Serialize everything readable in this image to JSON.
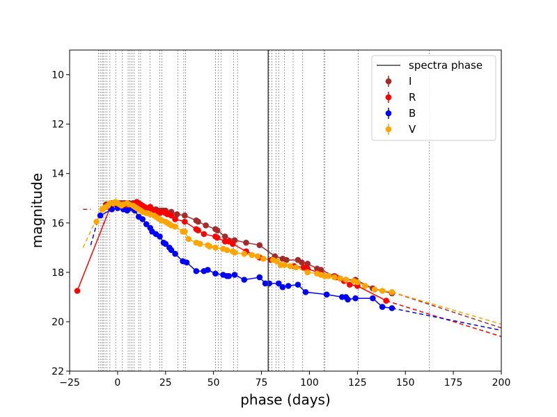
{
  "chart_data": {
    "type": "scatter",
    "xlabel": "phase (days)",
    "ylabel": "magnitude",
    "xlim": [
      -25,
      200
    ],
    "ylim": [
      22,
      9
    ],
    "y_inverted": true,
    "xticks": [
      -25,
      0,
      25,
      50,
      75,
      100,
      125,
      150,
      175,
      200
    ],
    "yticks": [
      10,
      12,
      14,
      16,
      18,
      20,
      22
    ],
    "grid": false,
    "legend_position": "top-right",
    "spectra_phase": 78.5,
    "spectra_phase_label": "spectra phase",
    "spectra_phase_color": "#404040",
    "obs_epochs": [
      -10,
      -9,
      -8,
      -7.5,
      -6.5,
      -5.5,
      -4,
      -1,
      2.5,
      5.5,
      6.5,
      7.5,
      8.5,
      11,
      12,
      17,
      22,
      23,
      31.5,
      34.5,
      35.5,
      51,
      52.5,
      54,
      60.5,
      62.5,
      79,
      80.5,
      82.5,
      84,
      87,
      91.5,
      96.5,
      107.5,
      108,
      125.5,
      162.5
    ],
    "series": [
      {
        "name": "I",
        "color": "#a52a2a",
        "x": [
          -6,
          -5,
          -3,
          1,
          2,
          3,
          4,
          5,
          6,
          8,
          9,
          10,
          11,
          12,
          13,
          17,
          20,
          22,
          23,
          24,
          25,
          28,
          31,
          35,
          41,
          42,
          46,
          51,
          52,
          56,
          61,
          67,
          74,
          82,
          86,
          88,
          94,
          96,
          99,
          104,
          106,
          113,
          116,
          119,
          124,
          133,
          143
        ],
        "y": [
          15.25,
          15.3,
          15.2,
          15.2,
          15.2,
          15.2,
          15.2,
          15.2,
          15.2,
          15.2,
          15.25,
          15.25,
          15.3,
          15.35,
          15.35,
          15.4,
          15.45,
          15.5,
          15.5,
          15.5,
          15.5,
          15.55,
          15.65,
          15.7,
          15.9,
          15.95,
          16.1,
          16.25,
          16.3,
          16.55,
          16.7,
          16.8,
          16.9,
          17.35,
          17.45,
          17.5,
          17.5,
          17.6,
          17.65,
          17.85,
          17.9,
          18.15,
          18.25,
          18.3,
          18.3,
          18.65,
          18.85
        ],
        "fit_x": [
          -14,
          143
        ],
        "fit_y": [
          15.45,
          18.8
        ],
        "extrap_x": [
          -18,
          -14,
          143,
          200
        ],
        "extrap_y": [
          15.45,
          15.45,
          18.8,
          20.25
        ]
      },
      {
        "name": "R",
        "color": "#ff0000",
        "x": [
          -21,
          -4,
          1,
          3,
          5,
          6,
          8,
          10,
          11,
          12,
          13,
          14,
          15,
          17,
          18,
          19,
          20,
          22,
          24,
          25,
          26,
          28,
          30,
          35,
          41,
          42,
          45,
          51,
          52,
          56,
          58,
          60,
          67,
          74,
          80,
          85,
          92,
          97,
          99,
          106,
          114,
          118,
          121,
          125,
          140
        ],
        "y": [
          18.75,
          15.4,
          15.25,
          15.3,
          15.35,
          15.4,
          15.25,
          15.15,
          15.2,
          15.25,
          15.3,
          15.35,
          15.4,
          15.35,
          15.45,
          15.5,
          15.55,
          15.6,
          15.55,
          15.6,
          15.65,
          15.7,
          15.85,
          15.95,
          16.25,
          16.3,
          16.45,
          16.55,
          16.6,
          16.75,
          16.75,
          16.85,
          17.15,
          17.4,
          17.5,
          17.7,
          17.75,
          17.8,
          17.85,
          18.05,
          18.2,
          18.35,
          18.5,
          18.55,
          19.15
        ],
        "fit_x": [
          -21,
          140
        ],
        "fit_y": [
          18.75,
          19.15
        ],
        "extrap_x": [
          140,
          200
        ],
        "extrap_y": [
          19.15,
          20.6
        ]
      },
      {
        "name": "B",
        "color": "#0000ff",
        "x": [
          -9,
          -3,
          0,
          3,
          5,
          7,
          9,
          11,
          13,
          15,
          17,
          18,
          20,
          22,
          24,
          25,
          27,
          28,
          30,
          34,
          36,
          41,
          45,
          47,
          51,
          55,
          57,
          58,
          61,
          66,
          74,
          77,
          79,
          84,
          86,
          89,
          94,
          98,
          109,
          117,
          119,
          120,
          124,
          133,
          138,
          143
        ],
        "y": [
          15.7,
          15.45,
          15.4,
          15.45,
          15.5,
          15.4,
          15.5,
          15.75,
          15.85,
          16.05,
          16.2,
          16.35,
          16.45,
          16.55,
          16.8,
          16.85,
          17.0,
          17.1,
          17.25,
          17.55,
          17.6,
          17.95,
          17.95,
          17.9,
          18.05,
          18.1,
          18.15,
          18.15,
          18.1,
          18.3,
          18.2,
          18.45,
          18.45,
          18.45,
          18.6,
          18.55,
          18.5,
          18.8,
          18.9,
          19.0,
          19.0,
          19.1,
          19.05,
          19.05,
          19.4,
          19.45
        ],
        "fit_x": [
          -14,
          143
        ],
        "fit_y": [
          16.9,
          19.45
        ],
        "extrap_x": [
          -14,
          -10,
          143,
          200
        ],
        "extrap_y": [
          16.9,
          15.8,
          19.45,
          20.35
        ]
      },
      {
        "name": "V",
        "color": "#ffa500",
        "x": [
          -11,
          -8,
          -7,
          -6,
          -5,
          -4,
          -2,
          -1,
          0,
          1,
          2,
          3,
          5,
          6,
          8,
          9,
          10,
          11,
          12,
          13,
          15,
          17,
          19,
          20,
          21,
          22,
          23,
          25,
          26,
          27,
          28,
          30,
          34,
          35,
          37,
          41,
          43,
          47,
          48,
          51,
          55,
          57,
          60,
          61,
          66,
          70,
          73,
          76,
          81,
          83,
          85,
          87,
          90,
          93,
          99,
          104,
          106,
          108,
          110,
          113,
          116,
          119,
          123,
          125,
          129,
          134,
          138,
          143
        ],
        "y": [
          15.95,
          15.45,
          15.4,
          15.35,
          15.3,
          15.2,
          15.2,
          15.15,
          15.2,
          15.25,
          15.3,
          15.25,
          15.2,
          15.25,
          15.3,
          15.35,
          15.4,
          15.45,
          15.5,
          15.55,
          15.6,
          15.65,
          15.7,
          15.75,
          15.8,
          15.85,
          15.9,
          15.95,
          16.0,
          16.05,
          16.1,
          16.15,
          16.35,
          16.35,
          16.65,
          16.8,
          16.85,
          16.9,
          16.95,
          17.0,
          17.05,
          17.1,
          17.15,
          17.2,
          17.25,
          17.3,
          17.35,
          17.45,
          17.5,
          17.55,
          17.7,
          17.7,
          17.75,
          17.8,
          18.0,
          18.05,
          18.1,
          18.15,
          18.15,
          18.2,
          18.25,
          18.3,
          18.35,
          18.4,
          18.55,
          18.7,
          18.75,
          18.8
        ],
        "fit_x": [
          -14,
          143
        ],
        "fit_y": [
          17.0,
          18.8
        ],
        "extrap_x": [
          -18,
          -12,
          143,
          200
        ],
        "extrap_y": [
          17.0,
          16.0,
          18.8,
          20.1
        ]
      }
    ]
  }
}
